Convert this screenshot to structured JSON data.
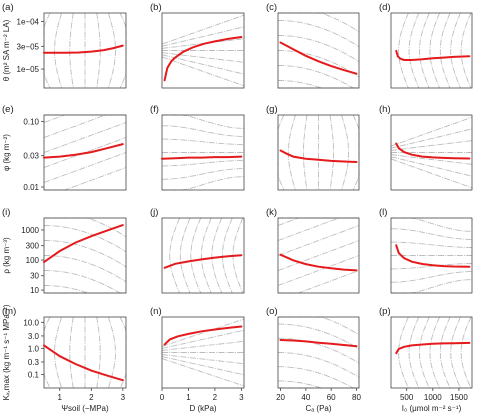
{
  "panel_labels": [
    "(a)",
    "(b)",
    "(c)",
    "(d)",
    "(e)",
    "(f)",
    "(g)",
    "(h)",
    "(i)",
    "(j)",
    "(k)",
    "(l)",
    "(m)",
    "(n)",
    "(o)",
    "(p)"
  ],
  "row_ylabels": [
    "θ (m² SA m⁻² LA)",
    "φ (kg m⁻²)",
    "ρ (kg m⁻³)",
    "Kₓ,max (kg m⁻¹ s⁻¹ MPa⁻¹)"
  ],
  "col_xlabels": [
    "Ψsoil (−MPa)",
    "D (kPa)",
    "Cₐ (Pa)",
    "I₀ (μmol m⁻² s⁻¹)"
  ],
  "colors": {
    "series": "#e41a1c",
    "contour": "#bdbdbd",
    "axis": "#444444"
  },
  "chart_data": {
    "type": "line",
    "layout": "4x4 grid of small line panels with grey dash-dot contour lines behind a red optimum curve",
    "x_axes": [
      {
        "label": "Ψsoil (−MPa)",
        "ticks": [
          1,
          2,
          3
        ],
        "lim": [
          0.5,
          3.1
        ]
      },
      {
        "label": "D (kPa)",
        "ticks": [
          0,
          1,
          2,
          3
        ],
        "lim": [
          0,
          3.1
        ]
      },
      {
        "label": "Cₐ (Pa)",
        "ticks": [
          20,
          40,
          60,
          80
        ],
        "lim": [
          18,
          82
        ]
      },
      {
        "label": "I₀ (μmol m⁻² s⁻¹)",
        "ticks": [
          500,
          1000,
          1500
        ],
        "lim": [
          200,
          1750
        ]
      }
    ],
    "y_axes": [
      {
        "label": "θ (m² SA m⁻² LA)",
        "scale": "log",
        "ticks": [
          1e-05,
          3e-05,
          0.0001
        ],
        "tick_labels": [
          "1e−05",
          "3e−05",
          "1e−04"
        ],
        "lim": [
          4e-06,
          0.00015
        ]
      },
      {
        "label": "φ (kg m⁻²)",
        "scale": "log",
        "ticks": [
          0.01,
          0.03,
          0.1
        ],
        "tick_labels": [
          "0.01",
          "0.03",
          "0.10"
        ],
        "lim": [
          0.009,
          0.125
        ]
      },
      {
        "label": "ρ (kg m⁻³)",
        "scale": "log",
        "ticks": [
          10,
          30,
          100,
          300,
          1000
        ],
        "tick_labels": [
          "10",
          "30",
          "100",
          "300",
          "1000"
        ],
        "lim": [
          8,
          2500
        ]
      },
      {
        "label": "Kₓ,max (kg m⁻¹ s⁻¹ MPa⁻¹)",
        "scale": "log",
        "ticks": [
          0.1,
          0.3,
          1,
          3,
          10
        ],
        "tick_labels": [
          "0.1",
          "0.3",
          "1.0",
          "3.0",
          "10.0"
        ],
        "lim": [
          0.03,
          16
        ]
      }
    ],
    "series": [
      {
        "panel": "(a)",
        "x": [
          0.5,
          0.8,
          1.2,
          1.6,
          2.0,
          2.4,
          2.7,
          3.0
        ],
        "y": [
          2.2e-05,
          2.2e-05,
          2.2e-05,
          2.22e-05,
          2.32e-05,
          2.5e-05,
          2.75e-05,
          3.1e-05
        ]
      },
      {
        "panel": "(b)",
        "x": [
          0.1,
          0.2,
          0.35,
          0.5,
          0.8,
          1.2,
          1.6,
          2.0,
          2.5,
          3.0
        ],
        "y": [
          5.8e-06,
          1.05e-05,
          1.45e-05,
          1.75e-05,
          2.3e-05,
          2.9e-05,
          3.4e-05,
          3.8e-05,
          4.3e-05,
          4.7e-05
        ]
      },
      {
        "panel": "(c)",
        "x": [
          20,
          30,
          40,
          50,
          60,
          70,
          80
        ],
        "y": [
          3.6e-05,
          2.6e-05,
          1.9e-05,
          1.45e-05,
          1.15e-05,
          9.5e-06,
          8e-06
        ]
      },
      {
        "panel": "(d)",
        "x": [
          300,
          330,
          380,
          450,
          600,
          800,
          1000,
          1200,
          1400,
          1700
        ],
        "y": [
          2.4e-05,
          1.85e-05,
          1.65e-05,
          1.55e-05,
          1.55e-05,
          1.6e-05,
          1.68e-05,
          1.74e-05,
          1.8e-05,
          1.85e-05
        ]
      },
      {
        "panel": "(e)",
        "x": [
          0.5,
          1.0,
          1.5,
          2.0,
          2.5,
          3.0
        ],
        "y": [
          0.028,
          0.029,
          0.031,
          0.034,
          0.039,
          0.045
        ]
      },
      {
        "panel": "(f)",
        "x": [
          0,
          0.5,
          1.0,
          1.5,
          2.0,
          2.5,
          3.0
        ],
        "y": [
          0.027,
          0.0275,
          0.028,
          0.028,
          0.0285,
          0.0285,
          0.029
        ]
      },
      {
        "panel": "(g)",
        "x": [
          20,
          25,
          30,
          40,
          50,
          60,
          70,
          80
        ],
        "y": [
          0.036,
          0.032,
          0.029,
          0.027,
          0.026,
          0.025,
          0.0245,
          0.024
        ]
      },
      {
        "panel": "(h)",
        "x": [
          300,
          350,
          450,
          600,
          800,
          1000,
          1200,
          1400,
          1700
        ],
        "y": [
          0.046,
          0.039,
          0.034,
          0.031,
          0.029,
          0.0282,
          0.0278,
          0.0275,
          0.0272
        ]
      },
      {
        "panel": "(i)",
        "x": [
          0.5,
          1.0,
          1.5,
          2.0,
          2.5,
          3.0
        ],
        "y": [
          85,
          200,
          380,
          620,
          950,
          1450
        ]
      },
      {
        "panel": "(j)",
        "x": [
          0.1,
          0.5,
          1.0,
          1.5,
          2.0,
          2.5,
          3.0
        ],
        "y": [
          55,
          75,
          90,
          105,
          120,
          133,
          145
        ]
      },
      {
        "panel": "(k)",
        "x": [
          20,
          30,
          40,
          50,
          60,
          70,
          80
        ],
        "y": [
          150,
          98,
          73,
          60,
          53,
          48,
          45
        ]
      },
      {
        "panel": "(l)",
        "x": [
          300,
          350,
          450,
          600,
          800,
          1000,
          1200,
          1400,
          1700
        ],
        "y": [
          310,
          170,
          115,
          88,
          74,
          67,
          63,
          61,
          60
        ]
      },
      {
        "panel": "(m)",
        "x": [
          0.5,
          1.0,
          1.5,
          2.0,
          2.5,
          3.0
        ],
        "y": [
          1.3,
          0.5,
          0.25,
          0.14,
          0.09,
          0.06
        ]
      },
      {
        "panel": "(n)",
        "x": [
          0.1,
          0.3,
          0.6,
          1.0,
          1.5,
          2.0,
          2.5,
          3.0
        ],
        "y": [
          1.4,
          2.2,
          2.9,
          3.6,
          4.5,
          5.3,
          6.1,
          6.9
        ]
      },
      {
        "panel": "(o)",
        "x": [
          20,
          30,
          40,
          50,
          60,
          70,
          80
        ],
        "y": [
          2.1,
          2.0,
          1.85,
          1.65,
          1.5,
          1.35,
          1.2
        ]
      },
      {
        "panel": "(p)",
        "x": [
          300,
          350,
          450,
          600,
          800,
          1000,
          1200,
          1400,
          1700
        ],
        "y": [
          0.65,
          0.95,
          1.15,
          1.3,
          1.4,
          1.5,
          1.55,
          1.58,
          1.62
        ]
      }
    ],
    "grid": false,
    "legend": "none"
  }
}
